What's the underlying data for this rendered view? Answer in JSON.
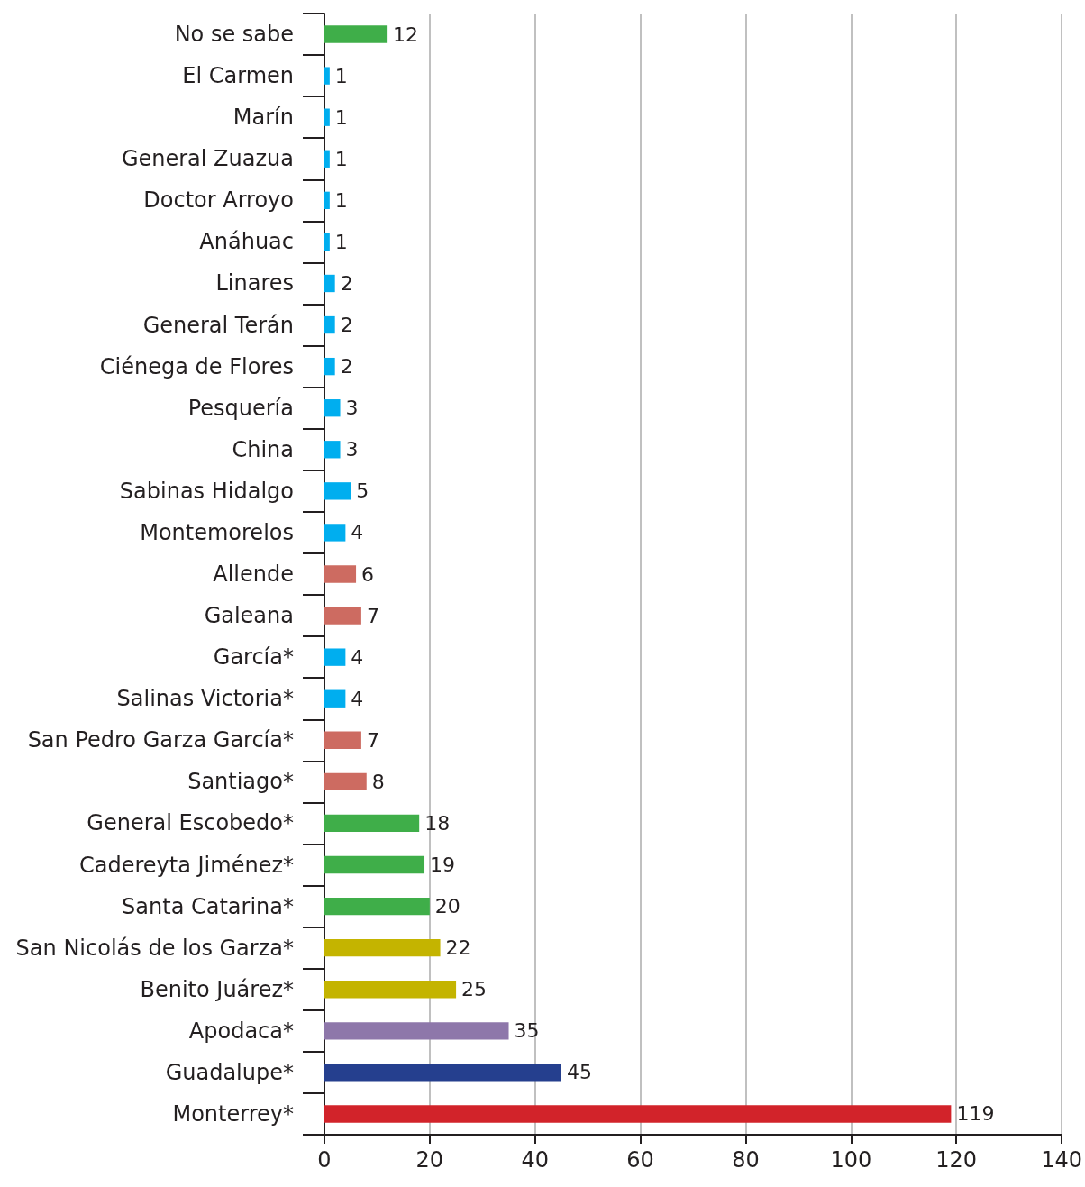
{
  "chart_data": {
    "type": "bar",
    "orientation": "horizontal",
    "categories": [
      "No se sabe",
      "El Carmen",
      "Marín",
      "General Zuazua",
      "Doctor Arroyo",
      "Anáhuac",
      "Linares",
      "General Terán",
      "Ciénega de Flores",
      "Pesquería",
      "China",
      "Sabinas Hidalgo",
      "Montemorelos",
      "Allende",
      "Galeana",
      "García*",
      "Salinas Victoria*",
      "San Pedro Garza García*",
      "Santiago*",
      "General Escobedo*",
      "Cadereyta Jiménez*",
      "Santa Catarina*",
      "San Nicolás de los Garza*",
      "Benito Juárez*",
      "Apodaca*",
      "Guadalupe*",
      "Monterrey*"
    ],
    "values": [
      12,
      1,
      1,
      1,
      1,
      1,
      2,
      2,
      2,
      3,
      3,
      5,
      4,
      6,
      7,
      4,
      4,
      7,
      8,
      18,
      19,
      20,
      22,
      25,
      35,
      45,
      119
    ],
    "colors": [
      "#3fae49",
      "#00aeef",
      "#00aeef",
      "#00aeef",
      "#00aeef",
      "#00aeef",
      "#00aeef",
      "#00aeef",
      "#00aeef",
      "#00aeef",
      "#00aeef",
      "#00aeef",
      "#00aeef",
      "#cd6b61",
      "#cd6b61",
      "#00aeef",
      "#00aeef",
      "#cd6b61",
      "#cd6b61",
      "#3fae49",
      "#3fae49",
      "#3fae49",
      "#c4b400",
      "#c4b400",
      "#8e77aa",
      "#253f8e",
      "#d2232a"
    ],
    "xlim": [
      0,
      140
    ],
    "xticks": [
      0,
      20,
      40,
      60,
      80,
      100,
      120,
      140
    ],
    "grid": "x",
    "data_labels": true
  }
}
